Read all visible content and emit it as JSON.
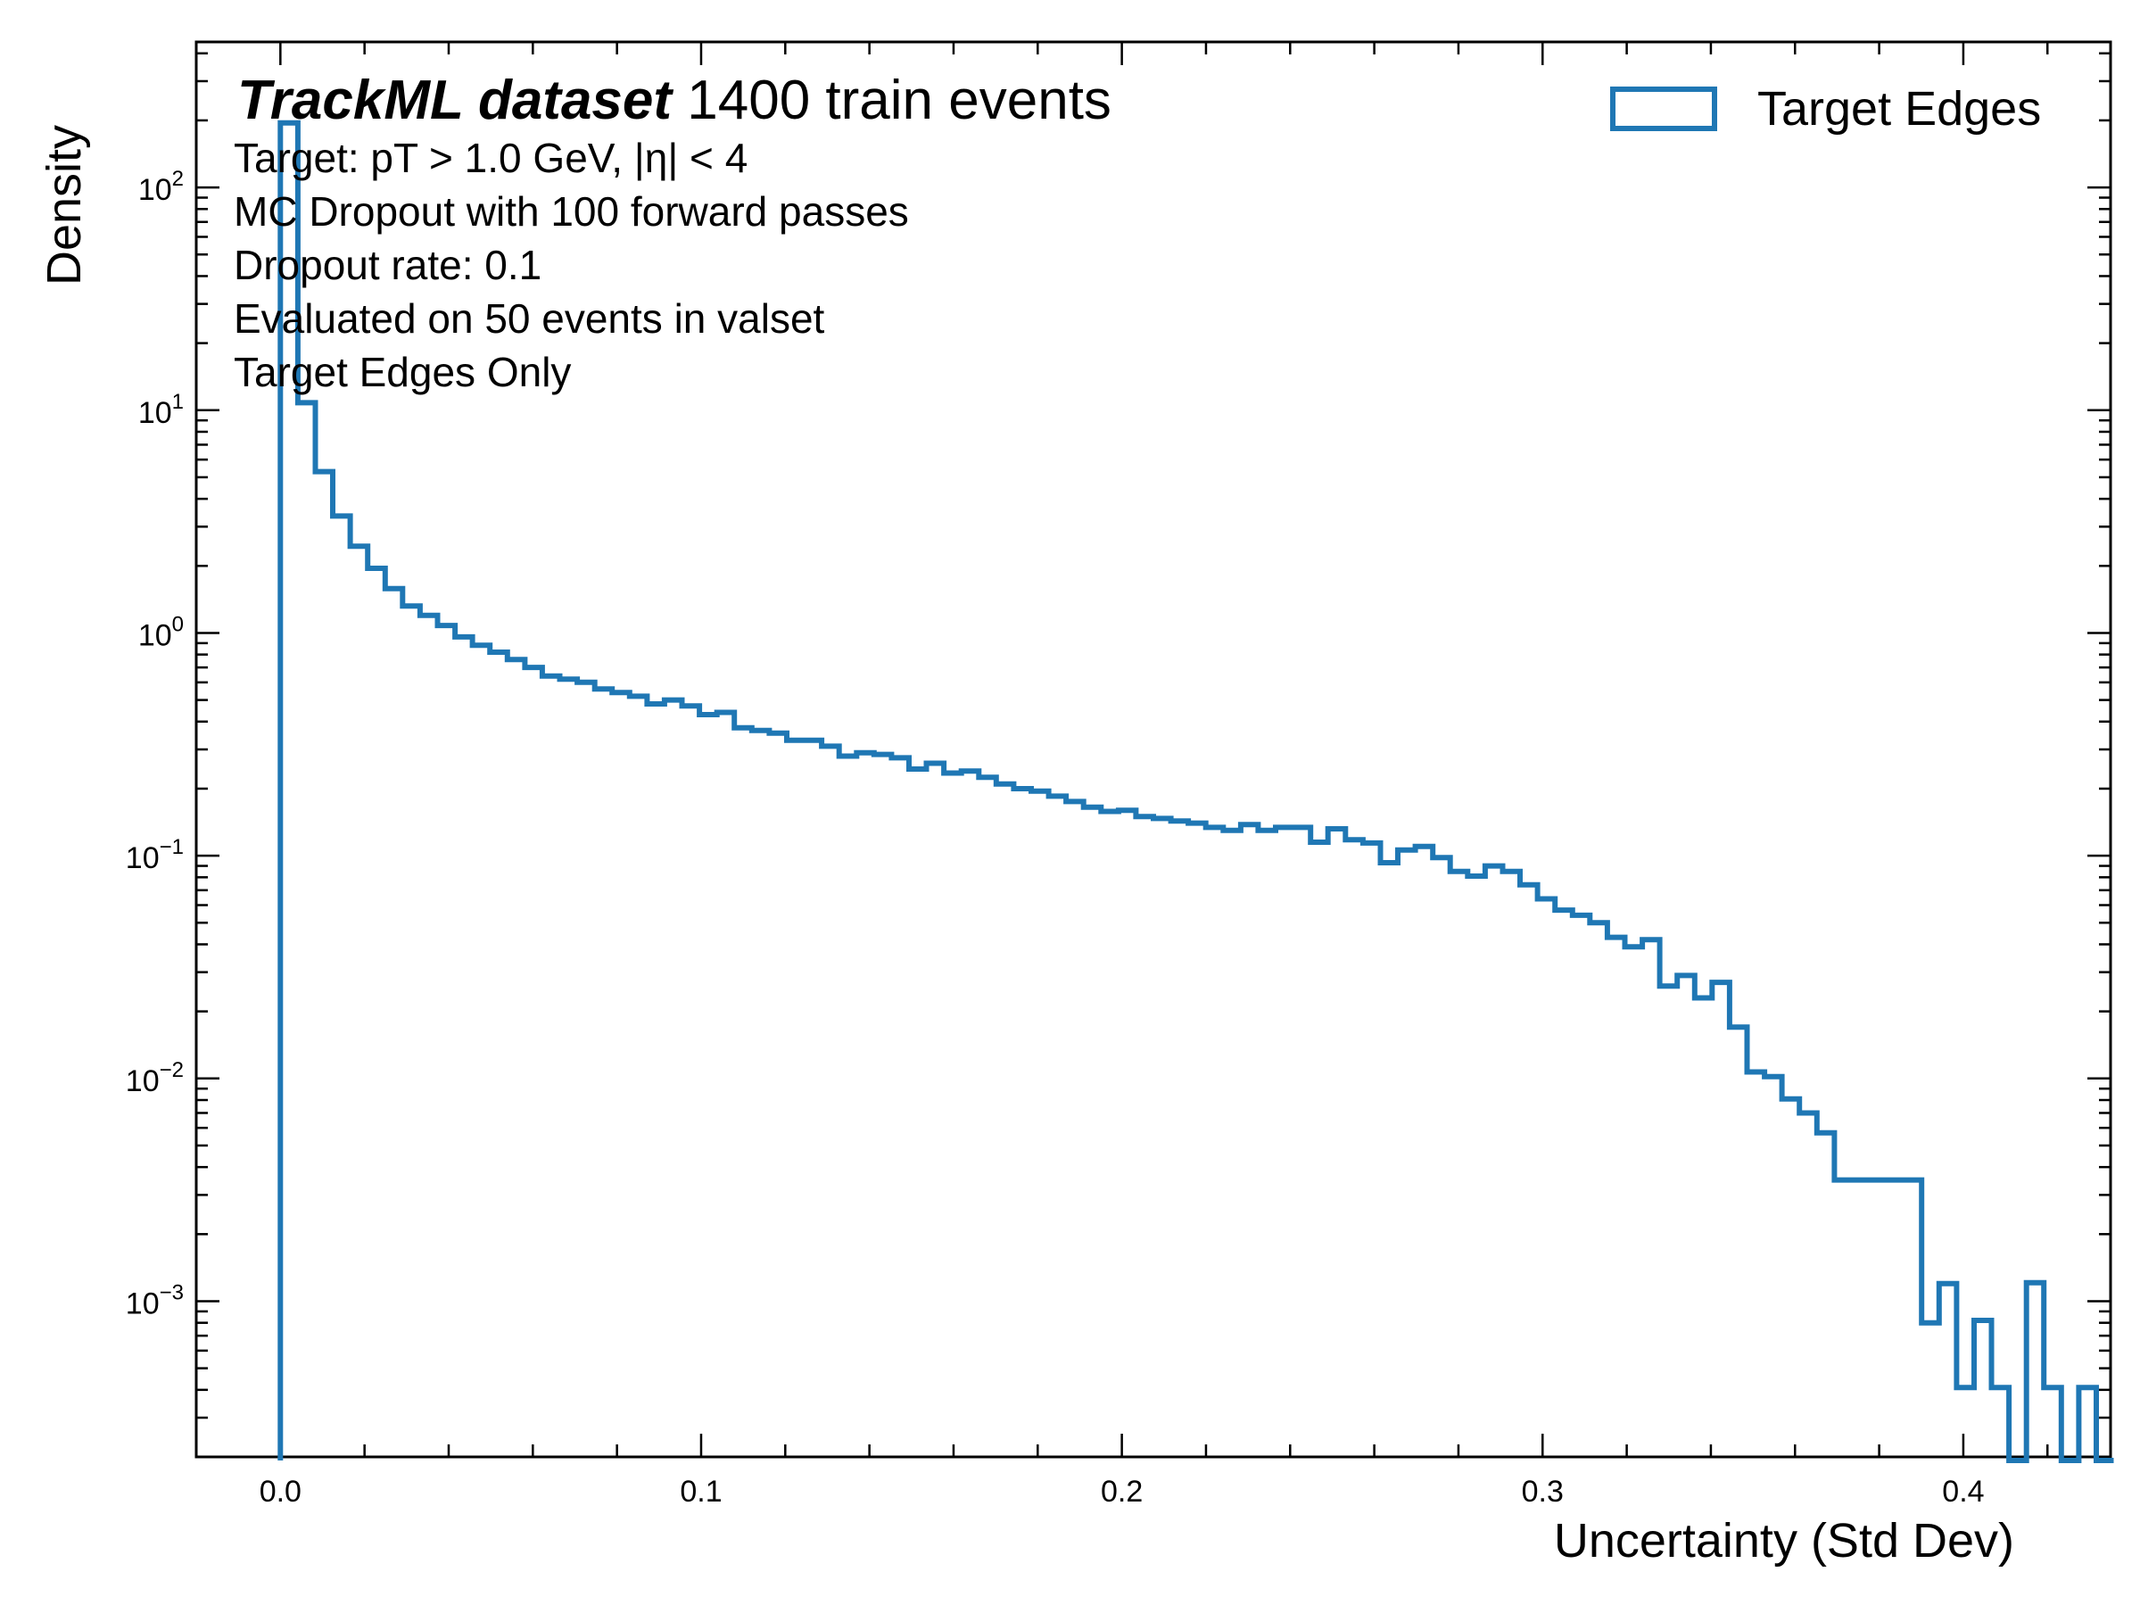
{
  "chart_data": {
    "type": "histogram",
    "title_bold": "TrackML dataset",
    "title_rest": " 1400 train events",
    "annotations": [
      "Target: pT > 1.0 GeV, |η| < 4",
      "MC Dropout with 100 forward passes",
      "Dropout rate: 0.1",
      "Evaluated on 50 events in valset",
      "Target Edges Only"
    ],
    "xlabel": "Uncertainty (Std Dev)",
    "ylabel": "Density",
    "yscale": "log",
    "xlim": [
      -0.02,
      0.435
    ],
    "ylim": [
      0.0002,
      450
    ],
    "x_ticks": [
      {
        "value": 0.0,
        "label": "0.0"
      },
      {
        "value": 0.1,
        "label": "0.1"
      },
      {
        "value": 0.2,
        "label": "0.2"
      },
      {
        "value": 0.3,
        "label": "0.3"
      },
      {
        "value": 0.4,
        "label": "0.4"
      }
    ],
    "y_ticks": [
      {
        "value": 0.001,
        "base": "10",
        "exp": "−3"
      },
      {
        "value": 0.01,
        "base": "10",
        "exp": "−2"
      },
      {
        "value": 0.1,
        "base": "10",
        "exp": "−1"
      },
      {
        "value": 1,
        "base": "10",
        "exp": "0"
      },
      {
        "value": 10,
        "base": "10",
        "exp": "1"
      },
      {
        "value": 100,
        "base": "10",
        "exp": "2"
      }
    ],
    "legend": {
      "position": "top-right",
      "entries": [
        "Target Edges"
      ]
    },
    "series": [
      {
        "name": "Target Edges",
        "color": "#1f77b4",
        "bin_start": 0.0,
        "bin_width": 0.00415,
        "values": [
          195,
          10.8,
          5.3,
          3.35,
          2.45,
          1.95,
          1.58,
          1.32,
          1.2,
          1.08,
          0.96,
          0.88,
          0.82,
          0.76,
          0.7,
          0.64,
          0.62,
          0.6,
          0.56,
          0.54,
          0.52,
          0.48,
          0.5,
          0.47,
          0.43,
          0.44,
          0.375,
          0.365,
          0.355,
          0.33,
          0.33,
          0.31,
          0.28,
          0.29,
          0.285,
          0.275,
          0.245,
          0.26,
          0.235,
          0.24,
          0.225,
          0.21,
          0.2,
          0.195,
          0.185,
          0.175,
          0.165,
          0.158,
          0.16,
          0.15,
          0.147,
          0.143,
          0.14,
          0.134,
          0.13,
          0.138,
          0.13,
          0.134,
          0.134,
          0.115,
          0.132,
          0.118,
          0.114,
          0.093,
          0.106,
          0.11,
          0.098,
          0.085,
          0.081,
          0.09,
          0.085,
          0.074,
          0.064,
          0.057,
          0.054,
          0.05,
          0.043,
          0.039,
          0.042,
          0.026,
          0.029,
          0.023,
          0.027,
          0.017,
          0.0107,
          0.0102,
          0.0081,
          0.007,
          0.0057,
          0.0035,
          0.0035,
          0.0035,
          0.0035,
          0.0035,
          0.0008,
          0.0012,
          0.00041,
          0.00082,
          0.00041,
          0,
          0.00121,
          0.00041,
          0,
          0.00041,
          0
        ]
      }
    ]
  }
}
